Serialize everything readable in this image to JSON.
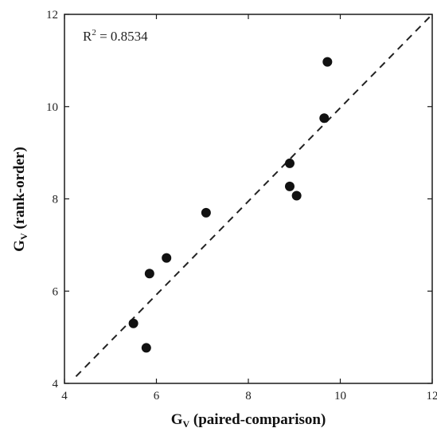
{
  "chart_data": {
    "type": "scatter",
    "xlabel_main": "G",
    "xlabel_sub": "V",
    "xlabel_rest": " (paired-comparison)",
    "ylabel_main": "G",
    "ylabel_sub": "V",
    "ylabel_rest": " (rank-order)",
    "xlim": [
      4,
      12
    ],
    "ylim": [
      4,
      12
    ],
    "x_ticks": [
      4,
      6,
      8,
      10,
      12
    ],
    "y_ticks": [
      4,
      6,
      8,
      10,
      12
    ],
    "annotation_prefix": "R",
    "annotation_sup": "2",
    "annotation_rest": " = 0.8534",
    "grid": false,
    "reference_line": {
      "style": "dashed",
      "from": [
        4.25,
        4.15
      ],
      "to": [
        12,
        12
      ]
    },
    "points": [
      {
        "x": 5.5,
        "y": 5.3
      },
      {
        "x": 5.78,
        "y": 4.77
      },
      {
        "x": 5.85,
        "y": 6.38
      },
      {
        "x": 6.22,
        "y": 6.72
      },
      {
        "x": 7.08,
        "y": 7.7
      },
      {
        "x": 8.9,
        "y": 8.77
      },
      {
        "x": 8.9,
        "y": 8.27
      },
      {
        "x": 9.05,
        "y": 8.07
      },
      {
        "x": 9.65,
        "y": 9.75
      },
      {
        "x": 9.72,
        "y": 10.97
      }
    ]
  }
}
